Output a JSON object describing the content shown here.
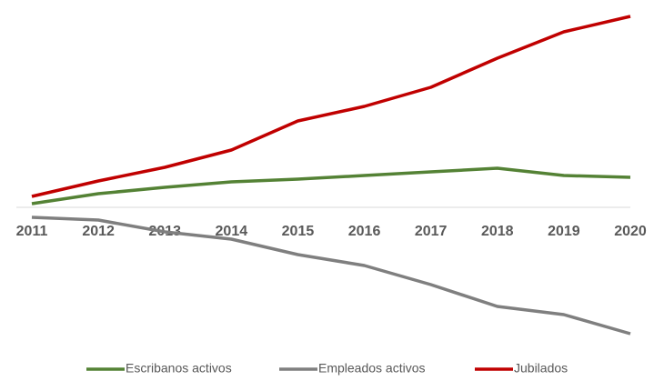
{
  "chart_data": {
    "type": "line",
    "categories": [
      "2011",
      "2012",
      "2013",
      "2014",
      "2015",
      "2016",
      "2017",
      "2018",
      "2019",
      "2020"
    ],
    "series": [
      {
        "name": "Escribanos activos",
        "color": "#548235",
        "values": [
          4,
          15,
          22,
          28,
          31,
          35,
          39,
          43,
          35,
          33
        ]
      },
      {
        "name": "Empleados activos",
        "color": "#7f7f7f",
        "values": [
          -11,
          -14,
          -27,
          -35,
          -52,
          -64,
          -85,
          -109,
          -118,
          -139
        ]
      },
      {
        "name": "Jubilados",
        "color": "#c00000",
        "values": [
          12,
          29,
          44,
          63,
          95,
          111,
          132,
          164,
          193,
          210
        ]
      }
    ],
    "ylim": [
      -142,
      228
    ],
    "legend": "bottom"
  }
}
